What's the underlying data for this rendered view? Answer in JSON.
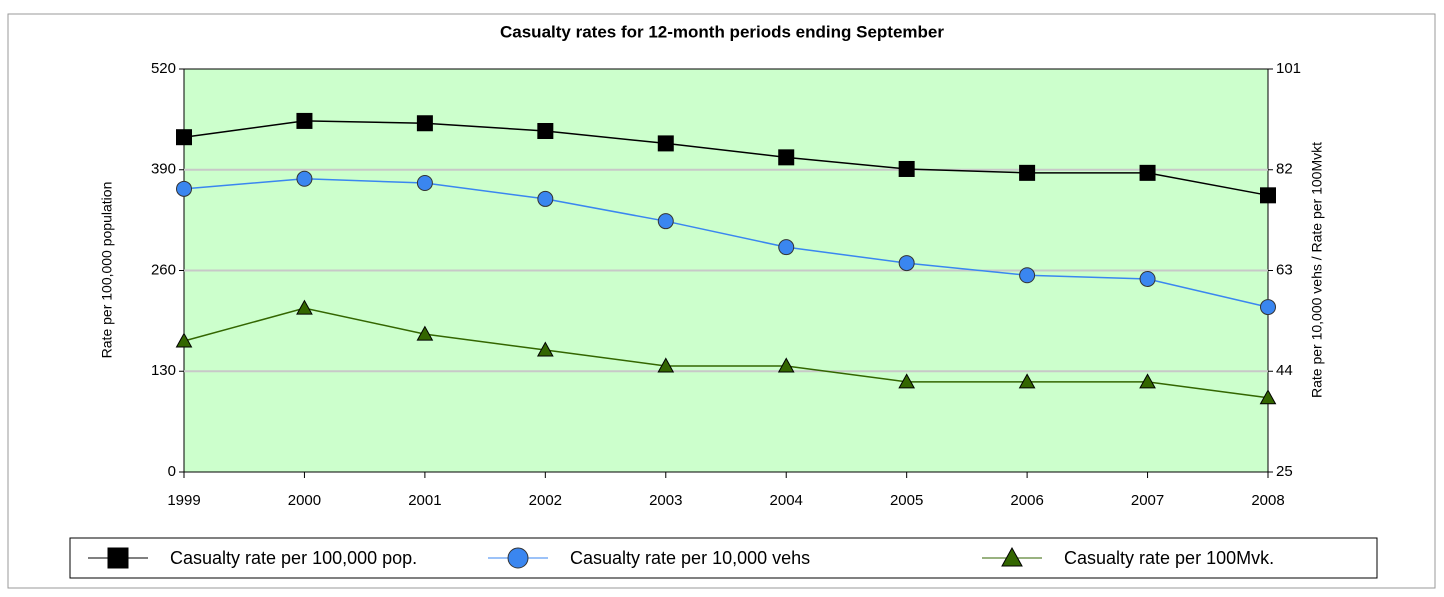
{
  "chart_data": {
    "type": "line",
    "title": "Casualty rates for 12-month periods ending September",
    "y_label": "Rate per 100,000 population",
    "y2_label": "Rate per 10,000 vehs / Rate per 100Mvkt",
    "categories": [
      "1999",
      "2000",
      "2001",
      "2002",
      "2003",
      "2004",
      "2005",
      "2006",
      "2007",
      "2008"
    ],
    "ylim": [
      0,
      520
    ],
    "yticks": [
      0,
      130,
      260,
      390,
      520
    ],
    "y2lim": [
      25,
      101
    ],
    "y2ticks": [
      25,
      44,
      63,
      82,
      101
    ],
    "grid": true,
    "background": "#ccffcc",
    "series": [
      {
        "name": "Casualty rate per 100,000 pop.",
        "color": "#000000",
        "marker": "square",
        "values": [
          432,
          453,
          450,
          440,
          424,
          406,
          391,
          386,
          386,
          357
        ]
      },
      {
        "name": "Casualty rate per 10,000 vehs",
        "color": "#3a86f0",
        "marker": "circle",
        "axis": "y2",
        "values": [
          78.4,
          80.3,
          79.5,
          76.5,
          72.3,
          67.4,
          64.4,
          62.1,
          61.4,
          56.1
        ]
      },
      {
        "name": "Casualty rate per 100Mvk.",
        "color": "#336600",
        "marker": "triangle",
        "axis": "y2",
        "values": [
          49.7,
          55.9,
          51.0,
          48.0,
          45.0,
          45.0,
          42.0,
          42.0,
          42.0,
          39.0
        ]
      }
    ]
  }
}
